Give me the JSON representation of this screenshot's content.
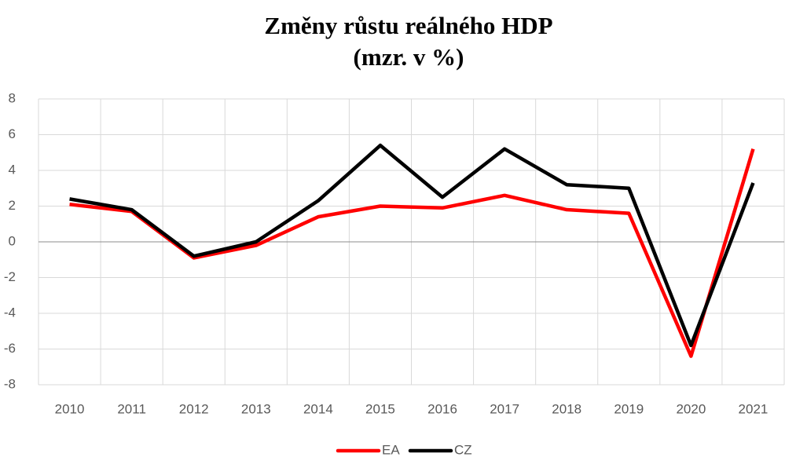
{
  "chart_data": {
    "type": "line",
    "title": "Změny růstu reálného HDP",
    "subtitle": "(mzr. v %)",
    "categories": [
      "2010",
      "2011",
      "2012",
      "2013",
      "2014",
      "2015",
      "2016",
      "2017",
      "2018",
      "2019",
      "2020",
      "2021"
    ],
    "series": [
      {
        "name": "EA",
        "color": "#ff0000",
        "values": [
          2.1,
          1.7,
          -0.9,
          -0.2,
          1.4,
          2.0,
          1.9,
          2.6,
          1.8,
          1.6,
          -6.4,
          5.2
        ]
      },
      {
        "name": "CZ",
        "color": "#000000",
        "values": [
          2.4,
          1.8,
          -0.8,
          0.0,
          2.3,
          5.4,
          2.5,
          5.2,
          3.2,
          3.0,
          -5.8,
          3.3
        ]
      }
    ],
    "ylim": [
      -8,
      8
    ],
    "yticks": [
      -8,
      -6,
      -4,
      -2,
      0,
      2,
      4,
      6,
      8
    ],
    "grid": true,
    "legend": "bottom"
  }
}
